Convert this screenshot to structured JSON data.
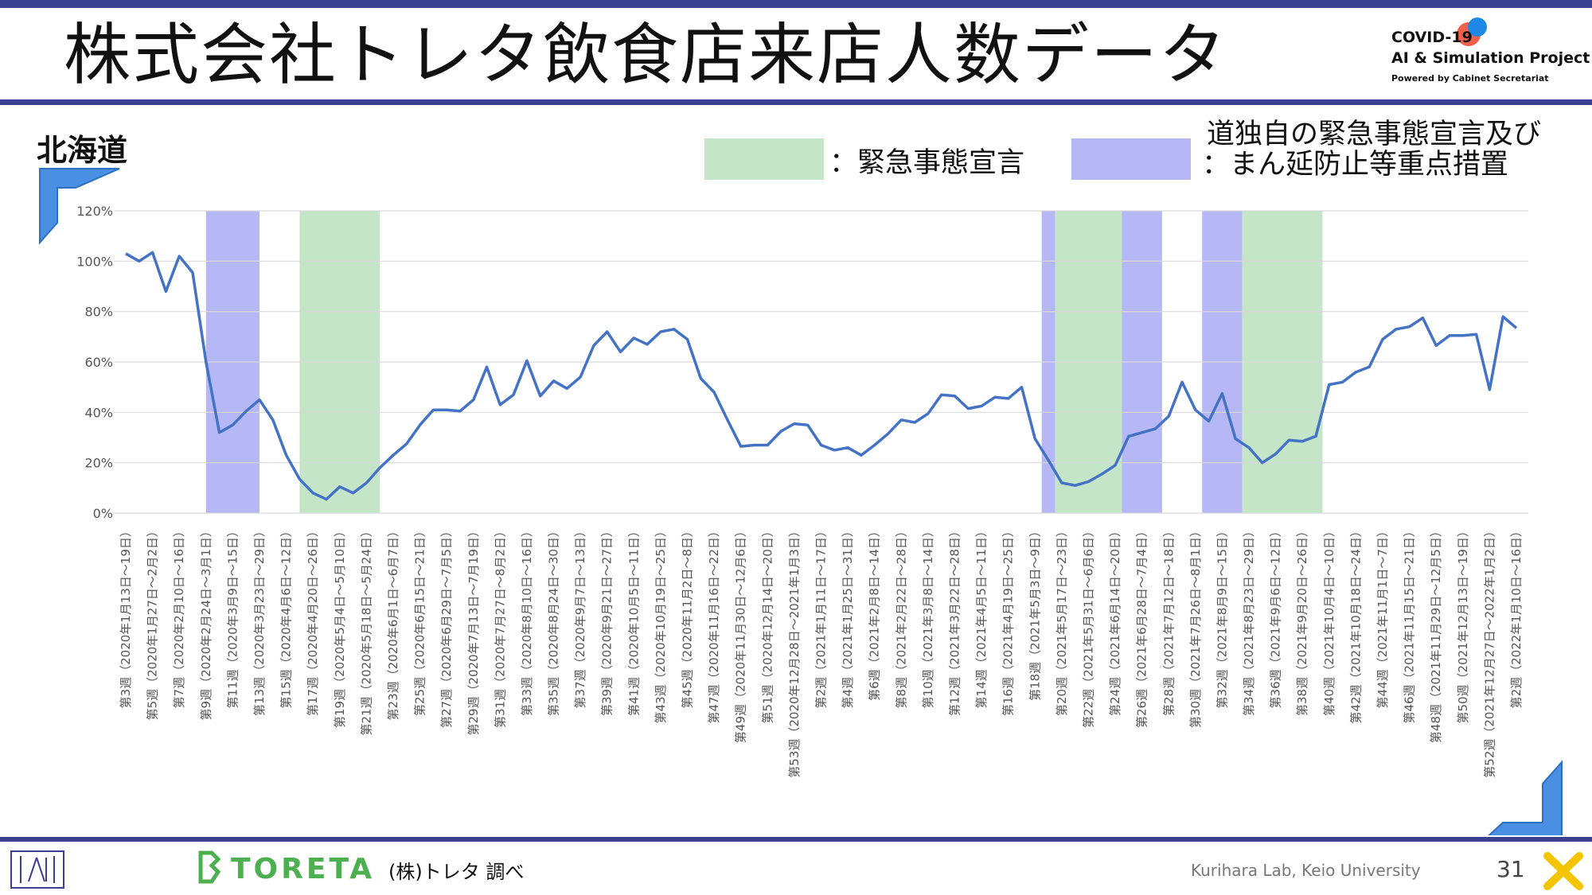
{
  "header": {
    "title": "株式会社トレタ飲食店来店人数データ",
    "logo_line1": "COVID-19",
    "logo_line2": "AI & Simulation Project",
    "logo_line3": "Powered by Cabinet Secretariat"
  },
  "region_label": "北海道",
  "legend": {
    "green_label": "：緊急事態宣言",
    "purple_label_line1": "道独自の緊急事態宣言及び",
    "purple_label_line2": "：まん延防止等重点措置"
  },
  "footer": {
    "brand": "TORETA",
    "source": "(株)トレタ 調べ",
    "lab": "Kurihara Lab, Keio University",
    "page": "31"
  },
  "colors": {
    "line": "#4472c4",
    "green_band": "#c5e5c8",
    "purple_band": "#b6b8f5",
    "accent_bar": "#3b3f8f",
    "grid": "#d9d9d9"
  },
  "chart_data": {
    "type": "line",
    "y_unit": "%",
    "ylim": [
      0,
      120
    ],
    "yticks": [
      "0%",
      "20%",
      "40%",
      "60%",
      "80%",
      "100%",
      "120%"
    ],
    "grid": true,
    "x_tick_labels": [
      "第3週（2020年1月13日～19日）",
      "第5週（2020年1月27日～2月2日）",
      "第7週（2020年2月10日～16日）",
      "第9週（2020年2月24日～3月1日）",
      "第11週（2020年3月9日～15日）",
      "第13週（2020年3月23日～29日）",
      "第15週（2020年4月6日～12日）",
      "第17週（2020年4月20日～26日）",
      "第19週（2020年5月4日～5月10日）",
      "第21週（2020年5月18日～5月24日）",
      "第23週（2020年6月1日～6月7日）",
      "第25週（2020年6月15日～21日）",
      "第27週（2020年6月29日～7月5日）",
      "第29週（2020年7月13日～7月19日）",
      "第31週（2020年7月27日～8月2日）",
      "第33週（2020年8月10日～16日）",
      "第35週（2020年8月24日～30日）",
      "第37週（2020年9月7日～13日）",
      "第39週（2020年9月21日～27日）",
      "第41週（2020年10月5日～11日）",
      "第43週（2020年10月19日～25日）",
      "第45週（2020年11月2日～8日）",
      "第47週（2020年11月16日～22日）",
      "第49週（2020年11月30日～12月6日）",
      "第51週（2020年12月14日～20日）",
      "第53週（2020年12月28日～2021年1月3日）",
      "第2週（2021年1月11日～17日）",
      "第4週（2021年1月25日～31日）",
      "第6週（2021年2月8日～14日）",
      "第8週（2021年2月22日～28日）",
      "第10週（2021年3月8日～14日）",
      "第12週（2021年3月22日～28日）",
      "第14週（2021年4月5日～11日）",
      "第16週（2021年4月19日～25日）",
      "第18週（2021年5月3日～9日）",
      "第20週（2021年5月17日～23日）",
      "第22週（2021年5月31日～6月6日）",
      "第24週（2021年6月14日～20日）",
      "第26週（2021年6月28日～7月4日）",
      "第28週（2021年7月12日～18日）",
      "第30週（2021年7月26日～8月1日）",
      "第32週（2021年8月9日～15日）",
      "第34週（2021年8月23日～29日）",
      "第36週（2021年9月6日～12日）",
      "第38週（2021年9月20日～26日）",
      "第40週（2021年10月4日～10日）",
      "第42週（2021年10月18日～24日）",
      "第44週（2021年11月1日～7日）",
      "第46週（2021年11月15日～21日）",
      "第48週（2021年11月29日～12月5日）",
      "第50週（2021年12月13日～19日）",
      "第52週（2021年12月27日～2022年1月2日）",
      "第2週（2022年1月10日～16日）"
    ],
    "series": [
      {
        "values": [
          103,
          100,
          103.5,
          88,
          102,
          95.5,
          60,
          32,
          35,
          40.5,
          45,
          37,
          23,
          13.5,
          8,
          5.5,
          10.5,
          8,
          12,
          18,
          23,
          27.5,
          35,
          41,
          41,
          40.5,
          45,
          58,
          43,
          47,
          60.5,
          46.5,
          52.5,
          49.5,
          54,
          66.5,
          72,
          64,
          69.5,
          67,
          72,
          73,
          69,
          53.5,
          48,
          37,
          26.5,
          27,
          27,
          32.5,
          35.5,
          35,
          27,
          25,
          26,
          23,
          27,
          31.5,
          37,
          36,
          39.5,
          47,
          46.5,
          41.5,
          42.5,
          46,
          45.5,
          50,
          29.5,
          21,
          12,
          11,
          12.5,
          15.5,
          19,
          30.5,
          32,
          33.5,
          38.5,
          52,
          41,
          36.5,
          47.5,
          29.5,
          26,
          20,
          23.5,
          29,
          28.5,
          30.5,
          51,
          52,
          56,
          58,
          69,
          73,
          74,
          77.5,
          66.5,
          70.5,
          70.5,
          71,
          49,
          78,
          73.5
        ]
      }
    ],
    "bands": [
      {
        "type": "purple",
        "start_week_index": 3,
        "end_week_index": 5
      },
      {
        "type": "green",
        "start_week_index": 6.5,
        "end_week_index": 9.5
      },
      {
        "type": "purple",
        "start_week_index": 34.25,
        "end_week_index": 34.75
      },
      {
        "type": "green",
        "start_week_index": 34.75,
        "end_week_index": 37.25
      },
      {
        "type": "purple",
        "start_week_index": 37.25,
        "end_week_index": 38.75
      },
      {
        "type": "purple",
        "start_week_index": 40.25,
        "end_week_index": 41.75
      },
      {
        "type": "green",
        "start_week_index": 41.75,
        "end_week_index": 44.75
      }
    ]
  }
}
